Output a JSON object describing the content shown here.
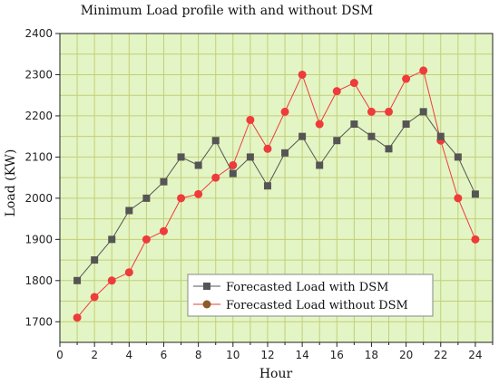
{
  "chart_data": {
    "type": "line",
    "title": "Minimum Load profile with and without DSM",
    "xlabel": "Hour",
    "ylabel": "Load (KW)",
    "xlim": [
      0,
      25
    ],
    "ylim": [
      1650,
      2400
    ],
    "xticks": [
      0,
      2,
      4,
      6,
      8,
      10,
      12,
      14,
      16,
      18,
      20,
      22,
      24
    ],
    "yticks": [
      1700,
      1800,
      1900,
      2000,
      2100,
      2200,
      2300,
      2400
    ],
    "grid": true,
    "legend_position": "bottom-center",
    "background_color": "#e3f5c4",
    "grid_color": "#c2cf78",
    "x": [
      1,
      2,
      3,
      4,
      5,
      6,
      7,
      8,
      9,
      10,
      11,
      12,
      13,
      14,
      15,
      16,
      17,
      18,
      19,
      20,
      21,
      22,
      23,
      24
    ],
    "series": [
      {
        "name": "Forecasted Load with DSM",
        "color": "#555555",
        "marker": "square",
        "values": [
          1800,
          1850,
          1900,
          1970,
          2000,
          2040,
          2100,
          2080,
          2140,
          2060,
          2100,
          2030,
          2110,
          2150,
          2080,
          2140,
          2180,
          2150,
          2120,
          2180,
          2210,
          2150,
          2100,
          2010
        ]
      },
      {
        "name": "Forecasted Load without DSM",
        "color": "#ee3b3b",
        "marker_color": "#8b5a2b",
        "marker": "circle",
        "values": [
          1710,
          1760,
          1800,
          1820,
          1900,
          1920,
          2000,
          2010,
          2050,
          2080,
          2190,
          2120,
          2210,
          2300,
          2180,
          2260,
          2280,
          2210,
          2210,
          2290,
          2310,
          2140,
          2000,
          1900
        ]
      }
    ]
  }
}
